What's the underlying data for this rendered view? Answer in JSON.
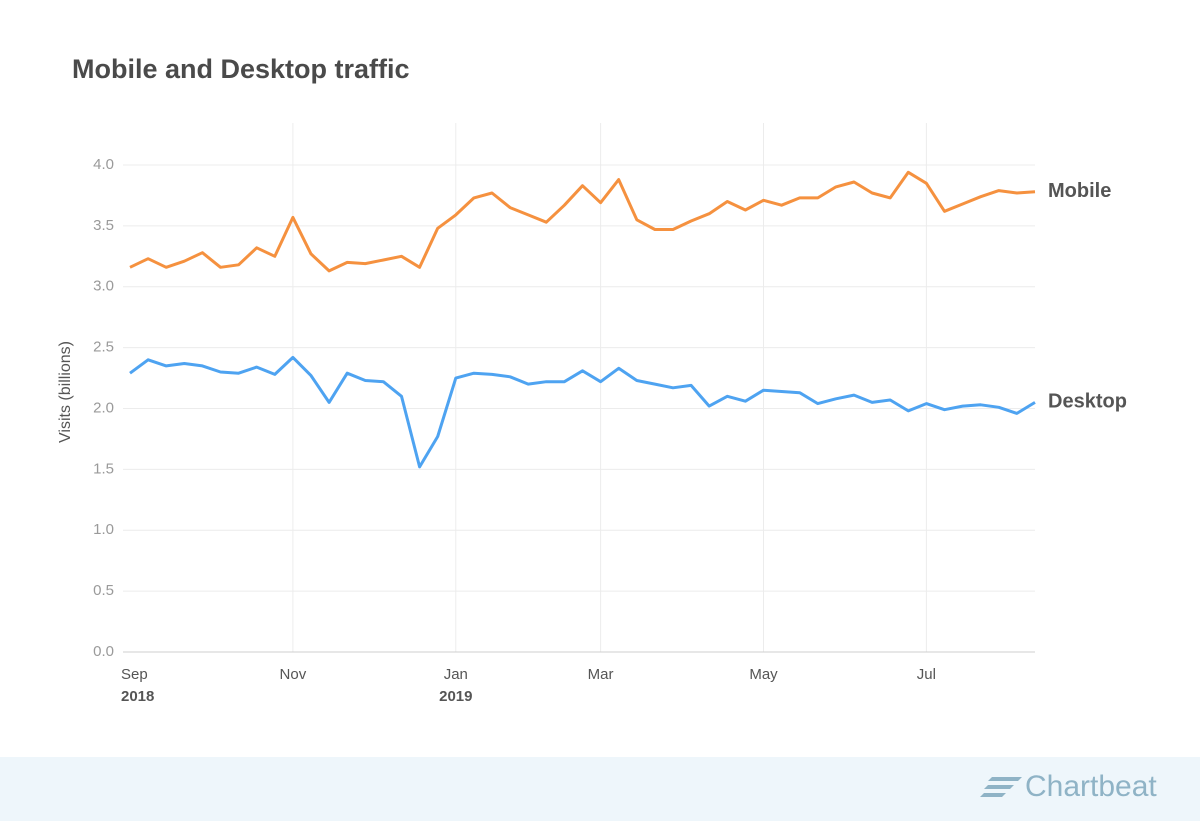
{
  "chart_data": {
    "type": "line",
    "title": "Mobile and Desktop traffic",
    "y_label": "Visits (billions)",
    "categories": [
      "Sep",
      null,
      null,
      null,
      null,
      null,
      null,
      null,
      null,
      "Nov",
      null,
      null,
      null,
      null,
      null,
      null,
      null,
      null,
      "Jan",
      null,
      null,
      null,
      null,
      null,
      null,
      null,
      "Mar",
      null,
      null,
      null,
      null,
      null,
      null,
      null,
      null,
      "May",
      null,
      null,
      null,
      null,
      null,
      null,
      null,
      null,
      "Jul",
      null,
      null,
      null,
      null,
      null,
      null
    ],
    "category_years": [
      "2018",
      null,
      null,
      null,
      null,
      null,
      null,
      null,
      null,
      null,
      null,
      null,
      null,
      null,
      null,
      null,
      null,
      null,
      "2019",
      null,
      null,
      null,
      null,
      null,
      null,
      null,
      null,
      null,
      null,
      null,
      null,
      null,
      null,
      null,
      null,
      null,
      null,
      null,
      null,
      null,
      null,
      null,
      null,
      null,
      null,
      null,
      null,
      null,
      null,
      null,
      null
    ],
    "series": [
      {
        "name": "Mobile",
        "color": "#f5913f",
        "values": [
          3.16,
          3.23,
          3.16,
          3.21,
          3.28,
          3.16,
          3.18,
          3.32,
          3.25,
          3.57,
          3.27,
          3.13,
          3.2,
          3.19,
          3.22,
          3.25,
          3.16,
          3.48,
          3.59,
          3.73,
          3.77,
          3.65,
          3.59,
          3.53,
          3.67,
          3.83,
          3.69,
          3.88,
          3.55,
          3.47,
          3.47,
          3.54,
          3.6,
          3.7,
          3.63,
          3.71,
          3.67,
          3.73,
          3.73,
          3.82,
          3.86,
          3.77,
          3.73,
          3.94,
          3.85,
          3.62,
          3.68,
          3.74,
          3.79,
          3.77,
          3.78
        ]
      },
      {
        "name": "Desktop",
        "color": "#4ea3f1",
        "values": [
          2.29,
          2.4,
          2.35,
          2.37,
          2.35,
          2.3,
          2.29,
          2.34,
          2.28,
          2.42,
          2.27,
          2.05,
          2.29,
          2.23,
          2.22,
          2.1,
          1.52,
          1.77,
          2.25,
          2.29,
          2.28,
          2.26,
          2.2,
          2.22,
          2.22,
          2.31,
          2.22,
          2.33,
          2.23,
          2.2,
          2.17,
          2.19,
          2.02,
          2.1,
          2.06,
          2.15,
          2.14,
          2.13,
          2.04,
          2.08,
          2.11,
          2.05,
          2.07,
          1.98,
          2.04,
          1.99,
          2.02,
          2.03,
          2.01,
          1.96,
          2.05
        ]
      }
    ],
    "ylim": [
      0,
      4.3
    ],
    "yticks": [
      {
        "value": 0,
        "label": "0.0"
      },
      {
        "value": 0.5,
        "label": "0.5"
      },
      {
        "value": 1,
        "label": "1.0"
      },
      {
        "value": 1.5,
        "label": "1.5"
      },
      {
        "value": 2,
        "label": "2.0"
      },
      {
        "value": 2.5,
        "label": "2.5"
      },
      {
        "value": 3,
        "label": "3.0"
      },
      {
        "value": 3.5,
        "label": "3.5"
      },
      {
        "value": 4,
        "label": "4.0"
      }
    ],
    "grid": true
  },
  "footer": {
    "brand": "Chartbeat"
  }
}
